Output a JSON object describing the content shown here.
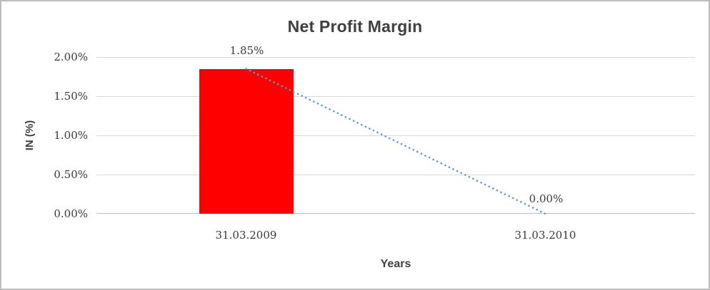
{
  "chart_data": {
    "type": "bar",
    "title": "Net Profit Margin",
    "xlabel": "Years",
    "ylabel": "IN (%)",
    "categories": [
      "31.03.2009",
      "31.03.2010"
    ],
    "values": [
      1.85,
      0.0
    ],
    "data_labels": [
      "1.85%",
      "0.00%"
    ],
    "yticks": [
      0,
      0.5,
      1,
      1.5,
      2
    ],
    "ytick_labels": [
      "0.00%",
      "0.50%",
      "1.00%",
      "1.50%",
      "2.00%"
    ],
    "ylim": [
      0,
      2
    ],
    "grid": true,
    "legend": "none",
    "colors": {
      "bar": "#ff0000",
      "trendline": "#5b9bd5",
      "gridline": "#d9d9d9",
      "axis_line": "#bfbfbf",
      "tick_text": "#3a3a3a",
      "title_text": "#404040"
    },
    "trendline": {
      "style": "dotted",
      "from_value": 1.85,
      "to_value": 0.0
    }
  }
}
